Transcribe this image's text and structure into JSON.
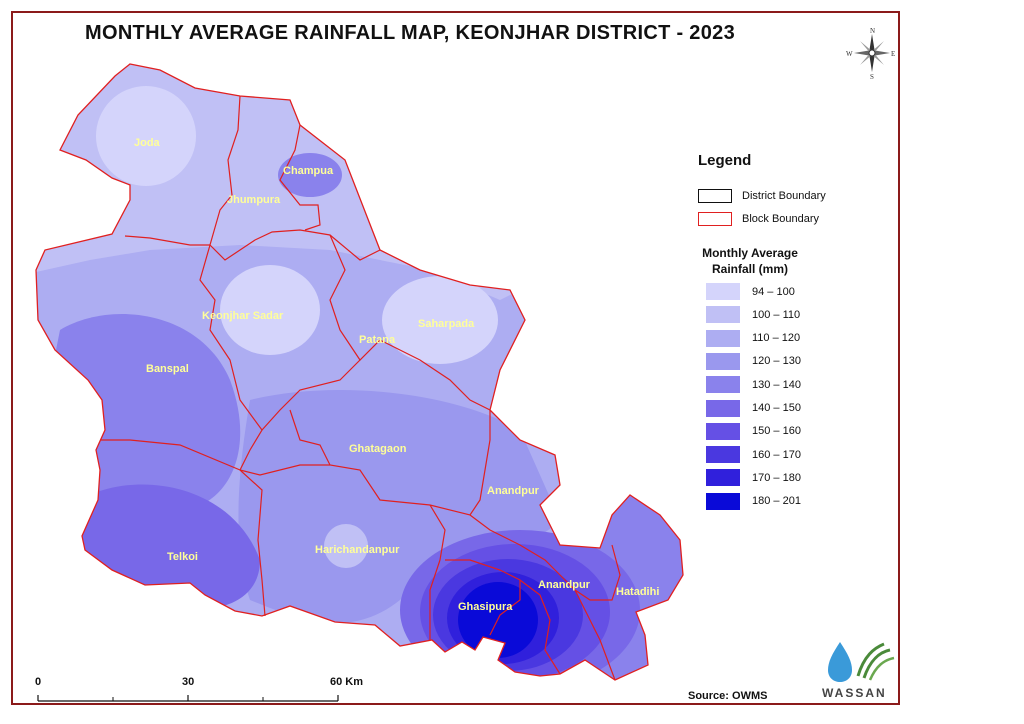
{
  "title": "MONTHLY AVERAGE RAINFALL MAP, KEONJHAR DISTRICT - 2023",
  "compass": {
    "n": "N",
    "s": "S",
    "e": "E",
    "w": "W"
  },
  "legend": {
    "title": "Legend",
    "district_boundary": "District Boundary",
    "block_boundary": "Block Boundary",
    "rainfall_title_line1": "Monthly Average",
    "rainfall_title_line2": "Rainfall (mm)",
    "classes": [
      {
        "label": "94 – 100",
        "color": "#d4d4fb"
      },
      {
        "label": "100 – 110",
        "color": "#c0c0f5"
      },
      {
        "label": "110 – 120",
        "color": "#adadf2"
      },
      {
        "label": "120 – 130",
        "color": "#9a98ee"
      },
      {
        "label": "130 – 140",
        "color": "#8a82ec"
      },
      {
        "label": "140 – 150",
        "color": "#7868e8"
      },
      {
        "label": "150 – 160",
        "color": "#6550e5"
      },
      {
        "label": "160 – 170",
        "color": "#4a38e0"
      },
      {
        "label": "170 – 180",
        "color": "#3020dc"
      },
      {
        "label": "180 – 201",
        "color": "#0a0ad8"
      }
    ]
  },
  "blocks": [
    "Joda",
    "Champua",
    "Jhumpura",
    "Keonjhar Sadar",
    "Saharpada",
    "Patana",
    "Banspal",
    "Ghatagaon",
    "Anandpur",
    "Telkoi",
    "Harichandanpur",
    "Anandpur",
    "Hatadihi",
    "Ghasipura"
  ],
  "scalebar": {
    "l0": "0",
    "l1": "30",
    "l2": "60 Km"
  },
  "source": "Source: OWMS",
  "logo_text": "WASSAN",
  "colors": {
    "frame": "#8b1a1a",
    "block_boundary": "#e02020",
    "label": "#ffff99"
  }
}
